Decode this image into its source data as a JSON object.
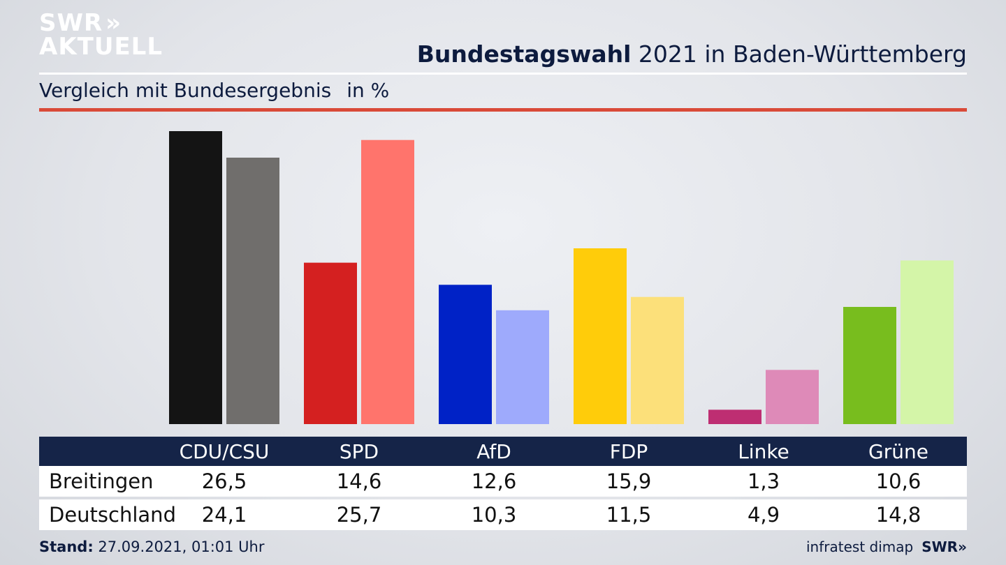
{
  "brand": {
    "logo_line1": "SWR",
    "logo_chevrons": "»",
    "logo_line2": "AKTUELL",
    "footer_logo": "SWR»"
  },
  "header": {
    "title_bold": "Bundestagswahl",
    "title_rest": " 2021 in Baden-Württemberg",
    "subtitle": "Vergleich mit Bundesergebnis",
    "unit": "in %"
  },
  "footer": {
    "stand_label": "Stand:",
    "stand_value": " 27.09.2021, 01:01 Uhr",
    "source": "infratest dimap"
  },
  "chart_data": {
    "type": "bar",
    "categories": [
      "CDU/CSU",
      "SPD",
      "AfD",
      "FDP",
      "Linke",
      "Grüne"
    ],
    "series": [
      {
        "name": "Breitingen",
        "values": [
          26.5,
          14.6,
          12.6,
          15.9,
          1.3,
          10.6
        ]
      },
      {
        "name": "Deutschland",
        "values": [
          24.1,
          25.7,
          10.3,
          11.5,
          4.9,
          14.8
        ]
      }
    ],
    "value_labels": [
      [
        "26,5",
        "14,6",
        "12,6",
        "15,9",
        "1,3",
        "10,6"
      ],
      [
        "24,1",
        "25,7",
        "10,3",
        "11,5",
        "4,9",
        "14,8"
      ]
    ],
    "colors": {
      "Breitingen": [
        "#141414",
        "#d42020",
        "#0022c6",
        "#ffcc0a",
        "#be2e72",
        "#78bd1e"
      ],
      "Deutschland": [
        "#706e6c",
        "#ff746c",
        "#9eaafc",
        "#fce07a",
        "#de8ab8",
        "#d4f5a8"
      ]
    },
    "ylim": [
      0,
      26.5
    ],
    "grid": false,
    "legend": "table-below"
  }
}
